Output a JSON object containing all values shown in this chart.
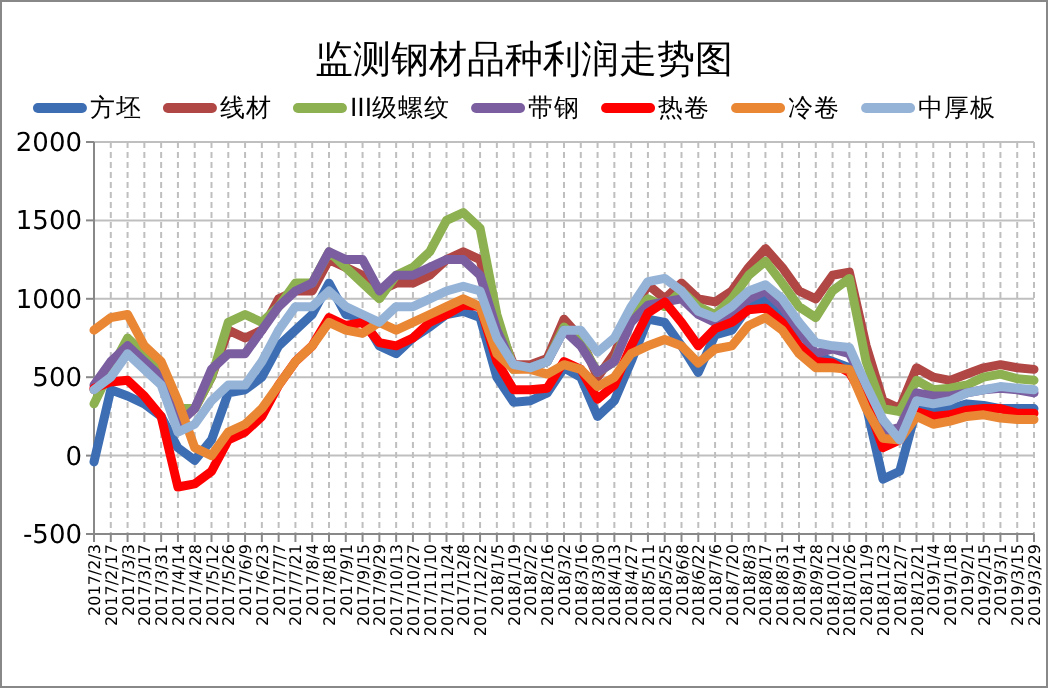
{
  "chart_data": {
    "type": "line",
    "title": "监测钢材品种利润走势图",
    "categories": [
      "2017/2/3",
      "2017/2/17",
      "2017/3/3",
      "2017/3/17",
      "2017/3/31",
      "2017/4/14",
      "2017/4/28",
      "2017/5/12",
      "2017/5/26",
      "2017/6/9",
      "2017/6/23",
      "2017/7/7",
      "2017/7/21",
      "2017/8/4",
      "2017/8/18",
      "2017/9/1",
      "2017/9/15",
      "2017/9/29",
      "2017/10/13",
      "2017/10/27",
      "2017/11/10",
      "2017/11/24",
      "2017/12/8",
      "2017/12/22",
      "2018/1/5",
      "2018/1/19",
      "2018/2/2",
      "2018/2/16",
      "2018/3/2",
      "2018/3/16",
      "2018/3/30",
      "2018/4/13",
      "2018/4/27",
      "2018/5/11",
      "2018/5/25",
      "2018/6/8",
      "2018/6/22",
      "2018/7/6",
      "2018/7/20",
      "2018/8/3",
      "2018/8/17",
      "2018/8/31",
      "2018/9/14",
      "2018/9/28",
      "2018/10/12",
      "2018/10/26",
      "2018/11/9",
      "2018/11/23",
      "2018/12/7",
      "2018/12/21",
      "2019/1/4",
      "2019/1/18",
      "2019/2/1",
      "2019/2/15",
      "2019/3/1",
      "2019/3/15",
      "2019/3/29"
    ],
    "series": [
      {
        "name": "方坯",
        "color": "#3d6eb4",
        "values": [
          -40,
          420,
          380,
          330,
          250,
          50,
          -30,
          100,
          400,
          420,
          500,
          700,
          800,
          900,
          1100,
          900,
          880,
          700,
          650,
          750,
          820,
          900,
          920,
          880,
          500,
          340,
          350,
          400,
          560,
          500,
          250,
          350,
          600,
          870,
          850,
          700,
          530,
          770,
          800,
          950,
          1000,
          900,
          700,
          640,
          600,
          560,
          320,
          -150,
          -100,
          300,
          280,
          300,
          330,
          320,
          300,
          300,
          300
        ]
      },
      {
        "name": "线材",
        "color": "#b04744",
        "values": [
          420,
          580,
          650,
          620,
          550,
          220,
          300,
          500,
          800,
          750,
          800,
          1000,
          1050,
          1050,
          1250,
          1200,
          1150,
          1050,
          1100,
          1100,
          1150,
          1250,
          1300,
          1250,
          850,
          580,
          580,
          620,
          870,
          750,
          500,
          650,
          900,
          1090,
          1000,
          1100,
          1000,
          980,
          1050,
          1200,
          1320,
          1200,
          1050,
          1000,
          1150,
          1170,
          700,
          350,
          300,
          560,
          500,
          480,
          520,
          560,
          580,
          560,
          550
        ]
      },
      {
        "name": "III级螺纹",
        "color": "#8db050",
        "values": [
          330,
          550,
          750,
          650,
          550,
          300,
          300,
          500,
          850,
          900,
          850,
          950,
          1100,
          1100,
          1300,
          1200,
          1100,
          1000,
          1150,
          1200,
          1300,
          1500,
          1550,
          1450,
          900,
          550,
          560,
          600,
          820,
          720,
          530,
          600,
          880,
          1000,
          950,
          1050,
          950,
          900,
          1000,
          1150,
          1240,
          1100,
          950,
          880,
          1050,
          1130,
          600,
          300,
          280,
          480,
          420,
          430,
          450,
          500,
          520,
          490,
          480
        ]
      },
      {
        "name": "带钢",
        "color": "#7b5ea0",
        "values": [
          450,
          600,
          700,
          600,
          500,
          200,
          300,
          550,
          650,
          650,
          800,
          950,
          1050,
          1100,
          1300,
          1250,
          1250,
          1050,
          1150,
          1150,
          1200,
          1250,
          1250,
          1150,
          800,
          560,
          560,
          600,
          800,
          700,
          530,
          600,
          850,
          960,
          980,
          1000,
          900,
          850,
          900,
          1000,
          1050,
          950,
          800,
          650,
          680,
          650,
          450,
          150,
          180,
          400,
          380,
          380,
          400,
          420,
          430,
          420,
          400
        ]
      },
      {
        "name": "热卷",
        "color": "#ff0000",
        "values": [
          430,
          470,
          480,
          380,
          250,
          -200,
          -180,
          -100,
          100,
          150,
          250,
          450,
          600,
          700,
          880,
          830,
          850,
          720,
          700,
          750,
          850,
          900,
          960,
          950,
          600,
          420,
          420,
          430,
          600,
          550,
          360,
          450,
          700,
          910,
          980,
          850,
          700,
          810,
          850,
          930,
          940,
          850,
          700,
          600,
          590,
          530,
          350,
          50,
          100,
          280,
          250,
          260,
          290,
          300,
          300,
          270,
          270
        ]
      },
      {
        "name": "冷卷",
        "color": "#e98735",
        "values": [
          800,
          880,
          900,
          700,
          600,
          350,
          50,
          0,
          150,
          200,
          300,
          450,
          600,
          700,
          850,
          800,
          780,
          850,
          800,
          850,
          900,
          950,
          1000,
          950,
          650,
          550,
          550,
          520,
          580,
          550,
          440,
          500,
          650,
          700,
          740,
          700,
          590,
          680,
          700,
          830,
          880,
          800,
          650,
          560,
          560,
          550,
          300,
          110,
          100,
          250,
          200,
          220,
          250,
          260,
          240,
          230,
          230
        ]
      },
      {
        "name": "中厚板",
        "color": "#95b3d7",
        "values": [
          420,
          500,
          650,
          550,
          450,
          150,
          200,
          350,
          450,
          450,
          600,
          800,
          950,
          950,
          1050,
          950,
          900,
          850,
          950,
          950,
          1000,
          1050,
          1080,
          1050,
          750,
          580,
          560,
          600,
          800,
          800,
          660,
          750,
          950,
          1110,
          1130,
          1050,
          920,
          880,
          950,
          1050,
          1090,
          1000,
          850,
          720,
          700,
          690,
          450,
          230,
          100,
          350,
          330,
          350,
          400,
          420,
          440,
          430,
          420
        ]
      }
    ],
    "ylim": [
      -500,
      2000
    ],
    "yticks": [
      -500,
      0,
      500,
      1000,
      1500,
      2000
    ],
    "grid": true,
    "legend": "top",
    "line_style": "solid"
  }
}
